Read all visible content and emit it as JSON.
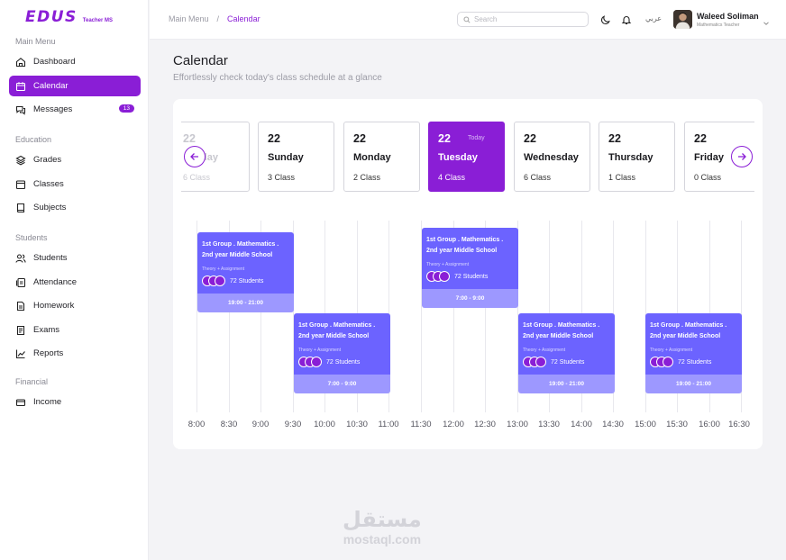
{
  "app": {
    "logo": "EDUS",
    "subtitle": "Teacher MS"
  },
  "sidebar": {
    "sections": [
      {
        "label": "Main Menu"
      },
      {
        "label": "Education"
      },
      {
        "label": "Students"
      },
      {
        "label": "Financial"
      }
    ],
    "items": [
      {
        "label": "Dashboard",
        "icon": "dashboard-icon"
      },
      {
        "label": "Calendar",
        "icon": "calendar-icon",
        "active": true
      },
      {
        "label": "Messages",
        "icon": "messages-icon",
        "badge": "13"
      },
      {
        "label": "Grades",
        "icon": "layers-icon"
      },
      {
        "label": "Classes",
        "icon": "classes-icon"
      },
      {
        "label": "Subjects",
        "icon": "book-icon"
      },
      {
        "label": "Students",
        "icon": "users-icon"
      },
      {
        "label": "Attendance",
        "icon": "attendance-icon"
      },
      {
        "label": "Homework",
        "icon": "homework-icon"
      },
      {
        "label": "Exams",
        "icon": "exams-icon"
      },
      {
        "label": "Reports",
        "icon": "reports-icon"
      },
      {
        "label": "Income",
        "icon": "wallet-icon"
      }
    ]
  },
  "header": {
    "breadcrumb": [
      "Main Menu",
      "/",
      "Calendar"
    ],
    "search_placeholder": "Search",
    "language": "عربي",
    "user": {
      "name": "Waleed Soliman",
      "role": "Mathematics Teacher"
    }
  },
  "main": {
    "title": "Calendar",
    "subtitle": "Effortlessly check today's class schedule at a glance",
    "today_label": "Today",
    "days": [
      {
        "num": "22",
        "name": "day",
        "count": "6 Class",
        "state": "faded"
      },
      {
        "num": "22",
        "name": "Sunday",
        "count": "3 Class"
      },
      {
        "num": "22",
        "name": "Monday",
        "count": "2 Class"
      },
      {
        "num": "22",
        "name": "Tuesday",
        "count": "4 Class",
        "state": "active"
      },
      {
        "num": "22",
        "name": "Wednesday",
        "count": "6 Class"
      },
      {
        "num": "22",
        "name": "Thursday",
        "count": "1 Class"
      },
      {
        "num": "22",
        "name": "Friday",
        "count": "0 Class"
      }
    ],
    "times": [
      "8:00",
      "8:30",
      "9:00",
      "9:30",
      "10:00",
      "10:30",
      "11:00",
      "11:30",
      "12:00",
      "12:30",
      "13:00",
      "13:30",
      "14:00",
      "14:30",
      "15:00",
      "15:30",
      "16:00",
      "16:30"
    ],
    "events": [
      {
        "title1": "1st Group . Mathematics .",
        "title2": "2nd year Middle School",
        "type": "Theory + Assignment",
        "students": "72 Students",
        "time": "19:00 - 21:00"
      },
      {
        "title1": "1st Group . Mathematics .",
        "title2": "2nd year Middle School",
        "type": "Theory + Assignment",
        "students": "72 Students",
        "time": "7:00 - 9:00"
      },
      {
        "title1": "1st Group . Mathematics .",
        "title2": "2nd year Middle School",
        "type": "Theory + Assignment",
        "students": "72 Students",
        "time": "7:00 - 9:00"
      },
      {
        "title1": "1st Group . Mathematics .",
        "title2": "2nd year Middle School",
        "type": "Theory + Assignment",
        "students": "72 Students",
        "time": "19:00 - 21:00"
      },
      {
        "title1": "1st Group . Mathematics .",
        "title2": "2nd year Middle School",
        "type": "Theory + Assignment",
        "students": "72 Students",
        "time": "19:00 - 21:00"
      }
    ]
  },
  "watermark": {
    "arabic": "مستقل",
    "latin": "mostaql.com"
  },
  "colors": {
    "accent": "#8a1ed6",
    "event": "#6c63ff",
    "event_time": "#9d98ff"
  }
}
